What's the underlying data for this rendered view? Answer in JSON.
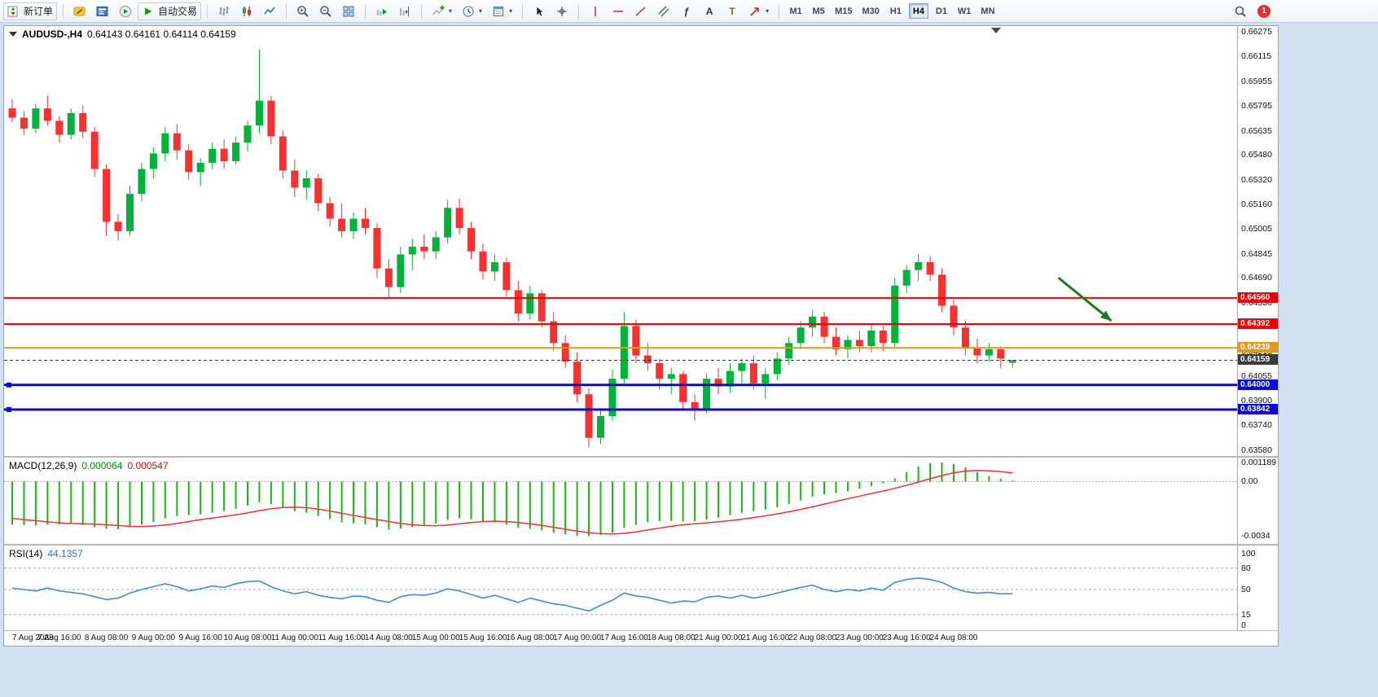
{
  "toolbar": {
    "new_order": "新订单",
    "autotrading": "自动交易",
    "icon_glyphs": {
      "text": "A",
      "fibonacci": "ƒ",
      "label": "T"
    },
    "timeframes": [
      "M1",
      "M5",
      "M15",
      "M30",
      "H1",
      "H4",
      "D1",
      "W1",
      "MN"
    ],
    "active_timeframe": "H4",
    "notification_count": "1"
  },
  "chart_data": [
    {
      "type": "candlestick",
      "title": "AUDUSD-,H4",
      "ohlc_text": "0.64143 0.64161 0.64114 0.64159",
      "current": {
        "open": 0.64143,
        "high": 0.64161,
        "low": 0.64114,
        "close": 0.64159
      },
      "up_color": "#00b43b",
      "down_color": "#f7312f",
      "ylim": [
        0.63543,
        0.6631
      ],
      "y_axis_ticks": [
        "0.66275",
        "0.66115",
        "0.65955",
        "0.65795",
        "0.65635",
        "0.65480",
        "0.65320",
        "0.65160",
        "0.65005",
        "0.64845",
        "0.64690",
        "0.64530",
        "0.64375",
        "0.64215",
        "0.64055",
        "0.63900",
        "0.63740",
        "0.63580"
      ],
      "x_labels": [
        "7 Aug 2023",
        "7 Aug 16:00",
        "8 Aug 08:00",
        "9 Aug 00:00",
        "9 Aug 16:00",
        "10 Aug 08:00",
        "11 Aug 00:00",
        "11 Aug 16:00",
        "14 Aug 08:00",
        "15 Aug 00:00",
        "15 Aug 16:00",
        "16 Aug 08:00",
        "17 Aug 00:00",
        "17 Aug 16:00",
        "18 Aug 08:00",
        "21 Aug 00:00",
        "21 Aug 16:00",
        "22 Aug 08:00",
        "23 Aug 00:00",
        "23 Aug 16:00",
        "24 Aug 08:00"
      ],
      "candles_per_label": 4,
      "candles": [
        [
          0.6578,
          0.6584,
          0.6569,
          0.6572
        ],
        [
          0.6572,
          0.6576,
          0.6561,
          0.6565
        ],
        [
          0.6565,
          0.6581,
          0.6562,
          0.6578
        ],
        [
          0.6578,
          0.6586,
          0.6567,
          0.657
        ],
        [
          0.657,
          0.6573,
          0.6556,
          0.6561
        ],
        [
          0.6561,
          0.6578,
          0.6558,
          0.6575
        ],
        [
          0.6575,
          0.658,
          0.6559,
          0.6563
        ],
        [
          0.6563,
          0.6566,
          0.6534,
          0.6539
        ],
        [
          0.6539,
          0.6542,
          0.6496,
          0.6505
        ],
        [
          0.6505,
          0.651,
          0.6493,
          0.6499
        ],
        [
          0.6499,
          0.6528,
          0.6496,
          0.6523
        ],
        [
          0.6523,
          0.6543,
          0.6518,
          0.6539
        ],
        [
          0.6539,
          0.6553,
          0.6533,
          0.6549
        ],
        [
          0.6549,
          0.6566,
          0.6544,
          0.6562
        ],
        [
          0.6562,
          0.6568,
          0.6545,
          0.6551
        ],
        [
          0.6551,
          0.6555,
          0.6532,
          0.6537
        ],
        [
          0.6537,
          0.6546,
          0.6528,
          0.6543
        ],
        [
          0.6543,
          0.6556,
          0.6539,
          0.6552
        ],
        [
          0.6552,
          0.6558,
          0.6539,
          0.6544
        ],
        [
          0.6544,
          0.656,
          0.6542,
          0.6556
        ],
        [
          0.6556,
          0.657,
          0.655,
          0.6567
        ],
        [
          0.6567,
          0.6616,
          0.6562,
          0.6583
        ],
        [
          0.6583,
          0.6586,
          0.6555,
          0.656
        ],
        [
          0.656,
          0.6564,
          0.6533,
          0.6538
        ],
        [
          0.6538,
          0.6545,
          0.6521,
          0.6527
        ],
        [
          0.6527,
          0.6538,
          0.6519,
          0.6533
        ],
        [
          0.6533,
          0.6536,
          0.6512,
          0.6517
        ],
        [
          0.6517,
          0.6521,
          0.6502,
          0.6507
        ],
        [
          0.6507,
          0.6517,
          0.6495,
          0.6499
        ],
        [
          0.6499,
          0.6511,
          0.6494,
          0.6507
        ],
        [
          0.6507,
          0.6514,
          0.6497,
          0.6501
        ],
        [
          0.6501,
          0.6504,
          0.6469,
          0.6475
        ],
        [
          0.6475,
          0.6481,
          0.6456,
          0.6463
        ],
        [
          0.6463,
          0.6489,
          0.6459,
          0.6484
        ],
        [
          0.6484,
          0.6494,
          0.6474,
          0.6489
        ],
        [
          0.6489,
          0.6497,
          0.6481,
          0.6486
        ],
        [
          0.6486,
          0.6499,
          0.6481,
          0.6495
        ],
        [
          0.6495,
          0.6519,
          0.6491,
          0.6514
        ],
        [
          0.6514,
          0.652,
          0.6497,
          0.6501
        ],
        [
          0.6501,
          0.6505,
          0.6481,
          0.6486
        ],
        [
          0.6486,
          0.6491,
          0.6468,
          0.6473
        ],
        [
          0.6473,
          0.6484,
          0.6467,
          0.6479
        ],
        [
          0.6479,
          0.6482,
          0.6457,
          0.6461
        ],
        [
          0.6461,
          0.6467,
          0.6441,
          0.6446
        ],
        [
          0.6446,
          0.6464,
          0.6442,
          0.6459
        ],
        [
          0.6459,
          0.6461,
          0.6437,
          0.6441
        ],
        [
          0.6441,
          0.6447,
          0.6422,
          0.6427
        ],
        [
          0.6427,
          0.6432,
          0.6411,
          0.6415
        ],
        [
          0.6415,
          0.6421,
          0.6389,
          0.6394
        ],
        [
          0.6394,
          0.6398,
          0.636,
          0.6366
        ],
        [
          0.6366,
          0.6385,
          0.6362,
          0.638
        ],
        [
          0.638,
          0.641,
          0.6377,
          0.6404
        ],
        [
          0.6404,
          0.6447,
          0.64,
          0.6438
        ],
        [
          0.6438,
          0.6442,
          0.6414,
          0.6419
        ],
        [
          0.6419,
          0.6427,
          0.6409,
          0.6414
        ],
        [
          0.6414,
          0.6417,
          0.6397,
          0.6404
        ],
        [
          0.6404,
          0.6411,
          0.6394,
          0.6407
        ],
        [
          0.6407,
          0.6409,
          0.6384,
          0.6389
        ],
        [
          0.6389,
          0.6394,
          0.6377,
          0.6384
        ],
        [
          0.6384,
          0.6407,
          0.6382,
          0.6404
        ],
        [
          0.6404,
          0.6411,
          0.6394,
          0.6399
        ],
        [
          0.6399,
          0.6414,
          0.6395,
          0.6409
        ],
        [
          0.6409,
          0.6417,
          0.6401,
          0.6414
        ],
        [
          0.6414,
          0.6419,
          0.6397,
          0.6401
        ],
        [
          0.6401,
          0.6411,
          0.6391,
          0.6407
        ],
        [
          0.6407,
          0.6421,
          0.6403,
          0.6417
        ],
        [
          0.6417,
          0.6431,
          0.6413,
          0.6427
        ],
        [
          0.6427,
          0.6441,
          0.6423,
          0.6437
        ],
        [
          0.6437,
          0.6448,
          0.6431,
          0.6444
        ],
        [
          0.6444,
          0.6447,
          0.6427,
          0.6431
        ],
        [
          0.6431,
          0.6437,
          0.6419,
          0.6423
        ],
        [
          0.6423,
          0.6432,
          0.6417,
          0.6429
        ],
        [
          0.6429,
          0.6435,
          0.6421,
          0.6425
        ],
        [
          0.6425,
          0.6439,
          0.6421,
          0.6435
        ],
        [
          0.6435,
          0.6438,
          0.6422,
          0.6427
        ],
        [
          0.6427,
          0.6469,
          0.6424,
          0.6464
        ],
        [
          0.6464,
          0.6477,
          0.6459,
          0.6474
        ],
        [
          0.6474,
          0.64845,
          0.6467,
          0.6479
        ],
        [
          0.6479,
          0.6483,
          0.6467,
          0.6471
        ],
        [
          0.6471,
          0.6475,
          0.6447,
          0.6451
        ],
        [
          0.6451,
          0.6455,
          0.6432,
          0.6437
        ],
        [
          0.6437,
          0.6441,
          0.6419,
          0.6424
        ],
        [
          0.6424,
          0.643,
          0.6414,
          0.6419
        ],
        [
          0.6419,
          0.6427,
          0.6415,
          0.6423
        ],
        [
          0.6423,
          0.6425,
          0.6411,
          0.6417
        ],
        [
          0.64143,
          0.64161,
          0.64114,
          0.64159
        ]
      ],
      "horizontal_lines": [
        {
          "price": 0.6456,
          "label": "0.64560",
          "color": "#f20000",
          "style": "solid",
          "width": 2,
          "handle": false
        },
        {
          "price": 0.64392,
          "label": "0.64392",
          "color": "#f20000",
          "style": "solid",
          "width": 2,
          "handle": false
        },
        {
          "price": 0.64239,
          "label": "0.64239",
          "color": "#e09a1e",
          "style": "solid",
          "width": 2,
          "handle": false
        },
        {
          "price": 0.64159,
          "label": "0.64159",
          "color": "#3c3c3c",
          "style": "dashed",
          "width": 1,
          "handle": false
        },
        {
          "price": 0.64,
          "label": "0.64000",
          "color": "#0a0ad2",
          "style": "solid",
          "width": 3,
          "handle": true
        },
        {
          "price": 0.63842,
          "label": "0.63842",
          "color": "#0a0ad2",
          "style": "solid",
          "width": 3,
          "handle": true
        }
      ],
      "annotation_arrow": {
        "from": {
          "bar": 88.9,
          "price": 0.6469
        },
        "to": {
          "bar": 93.4,
          "price": 0.64413
        },
        "color": "#1e7a1e"
      }
    },
    {
      "type": "macd_histogram",
      "title": "MACD(12,26,9)",
      "value_macd": "0.000064",
      "value_signal": "0.000547",
      "histogram_color": "#18b818",
      "signal_color": "#ff2d2d",
      "ylim": [
        -0.0039,
        0.0015
      ],
      "y_ticks": [
        {
          "v": 0.001189,
          "label": "0.001189"
        },
        {
          "v": 0,
          "label": "0.00"
        },
        {
          "v": -0.0034,
          "label": "-0.0034"
        }
      ],
      "values": [
        -0.0027,
        -0.00272,
        -0.00275,
        -0.0027,
        -0.00268,
        -0.00265,
        -0.00272,
        -0.00285,
        -0.00295,
        -0.00298,
        -0.00285,
        -0.0027,
        -0.00252,
        -0.0023,
        -0.00215,
        -0.0021,
        -0.00205,
        -0.00195,
        -0.00185,
        -0.0017,
        -0.0015,
        -0.0013,
        -0.0014,
        -0.0016,
        -0.00185,
        -0.00195,
        -0.00215,
        -0.00235,
        -0.00255,
        -0.00262,
        -0.00268,
        -0.00285,
        -0.003,
        -0.00295,
        -0.00285,
        -0.00275,
        -0.00262,
        -0.0024,
        -0.0023,
        -0.00235,
        -0.0025,
        -0.00255,
        -0.0027,
        -0.0029,
        -0.00295,
        -0.00305,
        -0.0032,
        -0.0033,
        -0.0034,
        -0.0034,
        -0.00335,
        -0.0032,
        -0.0029,
        -0.0027,
        -0.00255,
        -0.00248,
        -0.00245,
        -0.0025,
        -0.00248,
        -0.00238,
        -0.00225,
        -0.0021,
        -0.00195,
        -0.00185,
        -0.00175,
        -0.0016,
        -0.0014,
        -0.00118,
        -0.00095,
        -0.0008,
        -0.00072,
        -0.0006,
        -0.00045,
        -0.00028,
        -0.00012,
        0.0002,
        0.0006,
        0.00095,
        0.00115,
        0.00119,
        0.0011,
        0.0009,
        0.0006,
        0.00035,
        0.00018,
        6.4e-05
      ],
      "signal": [
        -0.0023,
        -0.00238,
        -0.00245,
        -0.00252,
        -0.00258,
        -0.00262,
        -0.00264,
        -0.00266,
        -0.0027,
        -0.00275,
        -0.0028,
        -0.00281,
        -0.00278,
        -0.00272,
        -0.00262,
        -0.0025,
        -0.00238,
        -0.00228,
        -0.00218,
        -0.00208,
        -0.00196,
        -0.00182,
        -0.0017,
        -0.00162,
        -0.0016,
        -0.00163,
        -0.00172,
        -0.00184,
        -0.00198,
        -0.00212,
        -0.00225,
        -0.00238,
        -0.0025,
        -0.00262,
        -0.0027,
        -0.00275,
        -0.00276,
        -0.00272,
        -0.00264,
        -0.00256,
        -0.0025,
        -0.00248,
        -0.0025,
        -0.00256,
        -0.00264,
        -0.00274,
        -0.00286,
        -0.00298,
        -0.0031,
        -0.0032,
        -0.00326,
        -0.00328,
        -0.00324,
        -0.00315,
        -0.00303,
        -0.00291,
        -0.0028,
        -0.00271,
        -0.00264,
        -0.00258,
        -0.00252,
        -0.00244,
        -0.00235,
        -0.00225,
        -0.00214,
        -0.00202,
        -0.00189,
        -0.00174,
        -0.00158,
        -0.00141,
        -0.00124,
        -0.00107,
        -0.00091,
        -0.00075,
        -0.00059,
        -0.00042,
        -0.00023,
        -3e-05,
        0.00018,
        0.00038,
        0.00055,
        0.00066,
        0.0007,
        0.00068,
        0.00062,
        0.000547
      ]
    },
    {
      "type": "line",
      "title": "RSI(14)",
      "value": "44.1357",
      "line_color": "#3e8ed0",
      "ylim": [
        0,
        100
      ],
      "levels": [
        80,
        50,
        15
      ],
      "y_ticks": [
        {
          "v": 100,
          "label": "100"
        },
        {
          "v": 80,
          "label": "80"
        },
        {
          "v": 50,
          "label": "50"
        },
        {
          "v": 15,
          "label": "15"
        },
        {
          "v": 0,
          "label": "0"
        }
      ],
      "values": [
        52,
        50,
        48,
        52,
        48,
        46,
        44,
        40,
        36,
        38,
        45,
        50,
        54,
        58,
        54,
        48,
        51,
        55,
        53,
        58,
        61,
        62,
        54,
        48,
        44,
        47,
        42,
        39,
        37,
        41,
        40,
        35,
        32,
        40,
        43,
        42,
        45,
        51,
        48,
        43,
        38,
        42,
        37,
        32,
        38,
        34,
        30,
        28,
        24,
        20,
        28,
        35,
        45,
        41,
        39,
        35,
        31,
        34,
        33,
        39,
        41,
        38,
        42,
        38,
        41,
        45,
        49,
        53,
        56,
        50,
        47,
        50,
        48,
        52,
        49,
        60,
        64,
        66,
        64,
        60,
        52,
        47,
        45,
        46,
        44,
        44.14
      ]
    }
  ]
}
